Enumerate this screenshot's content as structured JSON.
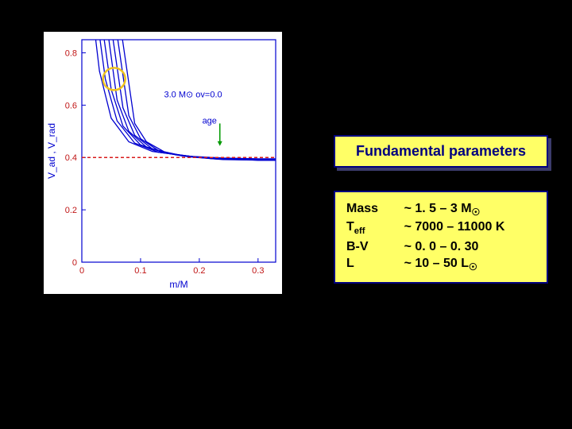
{
  "chart": {
    "type": "line",
    "background_color": "#ffffff",
    "frame_color": "#0000d0",
    "tick_font_color": "#c01515",
    "line_color": "#0000d0",
    "ref_line_color": "#d81c1c",
    "ylabel": "V_ad , V_rad",
    "xlabel": "m/M",
    "label_color": "#0000d0",
    "annot_main": "3.0 M⊙  ov=0.0",
    "annot_age": "age",
    "annot_color": "#0000d0",
    "age_arrow_color": "#009900",
    "circle_color": "#eec21f",
    "xlim": [
      0,
      0.33
    ],
    "ylim": [
      0,
      0.85
    ],
    "xticks": [
      0,
      0.1,
      0.2,
      0.3
    ],
    "yticks": [
      0,
      0.2,
      0.4,
      0.6,
      0.8
    ],
    "ref_y": 0.4,
    "curves": [
      [
        [
          0.021,
          0.9
        ],
        [
          0.03,
          0.73
        ],
        [
          0.05,
          0.55
        ],
        [
          0.08,
          0.46
        ],
        [
          0.12,
          0.423
        ],
        [
          0.18,
          0.405
        ],
        [
          0.24,
          0.398
        ],
        [
          0.3,
          0.395
        ],
        [
          0.33,
          0.395
        ]
      ],
      [
        [
          0.028,
          0.9
        ],
        [
          0.04,
          0.7
        ],
        [
          0.06,
          0.54
        ],
        [
          0.09,
          0.455
        ],
        [
          0.13,
          0.42
        ],
        [
          0.19,
          0.403
        ],
        [
          0.25,
          0.396
        ],
        [
          0.3,
          0.394
        ],
        [
          0.33,
          0.394
        ]
      ],
      [
        [
          0.035,
          0.9
        ],
        [
          0.05,
          0.66
        ],
        [
          0.07,
          0.52
        ],
        [
          0.1,
          0.448
        ],
        [
          0.14,
          0.418
        ],
        [
          0.2,
          0.4
        ],
        [
          0.26,
          0.395
        ],
        [
          0.3,
          0.393
        ],
        [
          0.33,
          0.393
        ]
      ],
      [
        [
          0.043,
          0.9
        ],
        [
          0.06,
          0.62
        ],
        [
          0.08,
          0.5
        ],
        [
          0.11,
          0.44
        ],
        [
          0.15,
          0.414
        ],
        [
          0.21,
          0.398
        ],
        [
          0.27,
          0.394
        ],
        [
          0.3,
          0.392
        ],
        [
          0.33,
          0.392
        ]
      ],
      [
        [
          0.05,
          0.9
        ],
        [
          0.07,
          0.59
        ],
        [
          0.09,
          0.485
        ],
        [
          0.12,
          0.433
        ],
        [
          0.16,
          0.41
        ],
        [
          0.22,
          0.396
        ],
        [
          0.28,
          0.392
        ],
        [
          0.3,
          0.391
        ],
        [
          0.33,
          0.391
        ]
      ],
      [
        [
          0.058,
          0.9
        ],
        [
          0.08,
          0.56
        ],
        [
          0.1,
          0.472
        ],
        [
          0.13,
          0.427
        ],
        [
          0.17,
          0.406
        ],
        [
          0.23,
          0.394
        ],
        [
          0.28,
          0.391
        ],
        [
          0.3,
          0.39
        ],
        [
          0.33,
          0.39
        ]
      ],
      [
        [
          0.066,
          0.9
        ],
        [
          0.09,
          0.53
        ],
        [
          0.11,
          0.46
        ],
        [
          0.14,
          0.422
        ],
        [
          0.18,
          0.403
        ],
        [
          0.24,
          0.392
        ],
        [
          0.29,
          0.39
        ],
        [
          0.3,
          0.389
        ],
        [
          0.33,
          0.389
        ]
      ]
    ]
  },
  "title_box": {
    "title": "Fundamental parameters"
  },
  "params": {
    "rows": [
      {
        "label_html": "Mass",
        "value_html": "~ 1. 5 – 3 M<span class=\"sun\">☉</span>"
      },
      {
        "label_html": "T<sub>eff</sub>",
        "value_html": "~ 7000 – 11000 K"
      },
      {
        "label_html": "B-V",
        "value_html": "~ 0. 0 – 0. 30"
      },
      {
        "label_html": "L",
        "value_html": "~ 10 – 50 L<span class=\"sun\">☉</span>"
      }
    ]
  }
}
